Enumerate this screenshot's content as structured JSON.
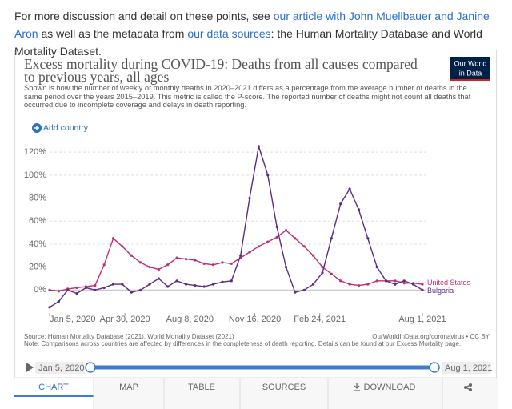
{
  "intro": {
    "parts": [
      "For more discussion and detail on these points, see ",
      "our article with John Muellbauer and Janine Aron",
      " as well as the metadata from ",
      "our data sources",
      ": the Human Mortality Database and World Mortality Dataset."
    ]
  },
  "logo": {
    "line1": "Our World",
    "line2": "in Data"
  },
  "add_country": "Add country",
  "footer": {
    "source": "Source: Human Mortality Database (2021), World Mortality Dataset (2021)",
    "url": "OurWorldInData.org/coronavirus • CC BY",
    "note": "Note: Comparisons across countries are affected by differences in the completeness of death reporting. Details can be found at our Excess Mortality page."
  },
  "timeline": {
    "start": "Jan 5, 2020",
    "end": "Aug 1, 2021"
  },
  "tabs": [
    "CHART",
    "MAP",
    "TABLE",
    "SOURCES",
    "DOWNLOAD"
  ],
  "chart_data": {
    "type": "line",
    "title": "Excess mortality during COVID-19: Deaths from all causes compared to previous years, all ages",
    "subtitle": "Shown is how the number of weekly or monthly deaths in 2020–2021 differs as a percentage from the average number of deaths in the same period over the years 2015–2019. This metric is called the P-score. The reported number of deaths might not count all deaths that occurred due to incomplete coverage and delays in death reporting.",
    "x": [
      "2020-01-05",
      "2020-01-19",
      "2020-02-02",
      "2020-02-16",
      "2020-03-01",
      "2020-03-15",
      "2020-03-29",
      "2020-04-12",
      "2020-04-26",
      "2020-05-10",
      "2020-05-24",
      "2020-06-07",
      "2020-06-21",
      "2020-07-05",
      "2020-07-19",
      "2020-08-02",
      "2020-08-16",
      "2020-08-30",
      "2020-09-13",
      "2020-09-27",
      "2020-10-11",
      "2020-10-25",
      "2020-11-08",
      "2020-11-22",
      "2020-12-06",
      "2020-12-20",
      "2021-01-03",
      "2021-01-17",
      "2021-01-31",
      "2021-02-14",
      "2021-02-28",
      "2021-03-14",
      "2021-03-28",
      "2021-04-11",
      "2021-04-25",
      "2021-05-09",
      "2021-05-23",
      "2021-06-06",
      "2021-06-20",
      "2021-07-04",
      "2021-07-18",
      "2021-08-01"
    ],
    "series": [
      {
        "name": "United States",
        "color": "#be2e74",
        "values": [
          0,
          -1,
          1,
          2,
          3,
          4,
          22,
          45,
          38,
          30,
          24,
          20,
          18,
          22,
          28,
          27,
          26,
          23,
          22,
          24,
          23,
          28,
          33,
          38,
          42,
          46,
          52,
          45,
          38,
          30,
          20,
          14,
          8,
          5,
          4,
          5,
          8,
          8,
          8,
          6,
          6,
          5
        ]
      },
      {
        "name": "Bulgaria",
        "color": "#5b2c83",
        "values": [
          -15,
          -10,
          0,
          -3,
          2,
          0,
          2,
          5,
          5,
          -2,
          0,
          5,
          10,
          3,
          8,
          5,
          4,
          3,
          5,
          7,
          8,
          30,
          80,
          125,
          100,
          55,
          20,
          -2,
          0,
          5,
          15,
          45,
          75,
          88,
          70,
          45,
          20,
          8,
          5,
          8,
          5,
          0
        ]
      }
    ],
    "xlim": [
      "2020-01-05",
      "2021-08-01"
    ],
    "xticks": [
      {
        "value": "2020-01-05",
        "label": "Jan 5, 2020"
      },
      {
        "value": "2020-04-30",
        "label": "Apr 30, 2020"
      },
      {
        "value": "2020-08-08",
        "label": "Aug 8, 2020"
      },
      {
        "value": "2020-11-16",
        "label": "Nov 16, 2020"
      },
      {
        "value": "2021-02-24",
        "label": "Feb 24, 2021"
      },
      {
        "value": "2021-08-01",
        "label": "Aug 1, 2021"
      }
    ],
    "ylim": [
      -20,
      125
    ],
    "yticks": [
      {
        "value": 0,
        "label": "0%"
      },
      {
        "value": 20,
        "label": "20%"
      },
      {
        "value": 40,
        "label": "40%"
      },
      {
        "value": 60,
        "label": "60%"
      },
      {
        "value": 80,
        "label": "80%"
      },
      {
        "value": 100,
        "label": "100%"
      },
      {
        "value": 120,
        "label": "120%"
      }
    ],
    "grid": true
  }
}
